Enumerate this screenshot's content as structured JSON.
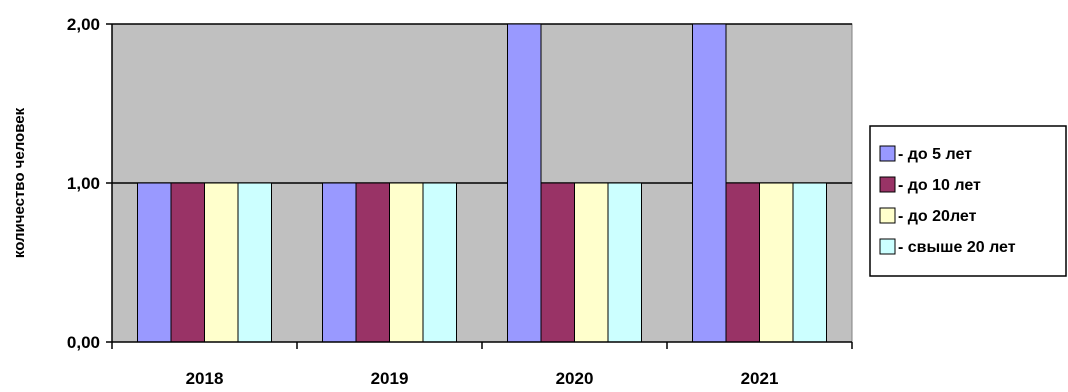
{
  "chart_data": {
    "type": "bar",
    "categories": [
      "2018",
      "2019",
      "2020",
      "2021"
    ],
    "series": [
      {
        "name": "- до 5 лет",
        "values": [
          1,
          1,
          2,
          2
        ],
        "color": "#9999ff"
      },
      {
        "name": "- до 10 лет",
        "values": [
          1,
          1,
          1,
          1
        ],
        "color": "#993366"
      },
      {
        "name": "- до 20лет",
        "values": [
          1,
          1,
          1,
          1
        ],
        "color": "#ffffcc"
      },
      {
        "name": "- свыше 20 лет",
        "values": [
          1,
          1,
          1,
          1
        ],
        "color": "#ccffff"
      }
    ],
    "title": "",
    "xlabel": "",
    "ylabel": "количество человек",
    "ylim": [
      0,
      2
    ],
    "yticks": [
      {
        "value": 0,
        "label": "0,00"
      },
      {
        "value": 1,
        "label": "1,00"
      },
      {
        "value": 2,
        "label": "2,00"
      }
    ],
    "grid": true,
    "legend_position": "right",
    "plot_background": "#c0c0c0",
    "gridline_color": "#000000"
  }
}
